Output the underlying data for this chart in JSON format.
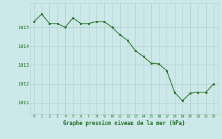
{
  "x": [
    0,
    1,
    2,
    3,
    4,
    5,
    6,
    7,
    8,
    9,
    10,
    11,
    12,
    13,
    14,
    15,
    16,
    17,
    18,
    19,
    20,
    21,
    22,
    23
  ],
  "y": [
    1015.3,
    1015.7,
    1015.2,
    1015.2,
    1015.0,
    1015.5,
    1015.2,
    1015.2,
    1015.3,
    1015.3,
    1015.0,
    1014.6,
    1014.3,
    1013.75,
    1013.45,
    1013.1,
    1013.05,
    1012.7,
    1011.55,
    1011.1,
    1011.5,
    1011.55,
    1011.55,
    1012.0
  ],
  "line_color": "#1a6b1a",
  "marker_color": "#1a6b1a",
  "bg_color": "#cce8e8",
  "grid_color": "#b0cccc",
  "xlabel": "Graphe pression niveau de la mer (hPa)",
  "xlabel_color": "#1a6b1a",
  "ylabel_ticks": [
    1011,
    1012,
    1013,
    1014,
    1015
  ],
  "tick_color": "#1a6b1a",
  "ylim": [
    1010.4,
    1016.3
  ],
  "xlim": [
    -0.5,
    23.5
  ]
}
